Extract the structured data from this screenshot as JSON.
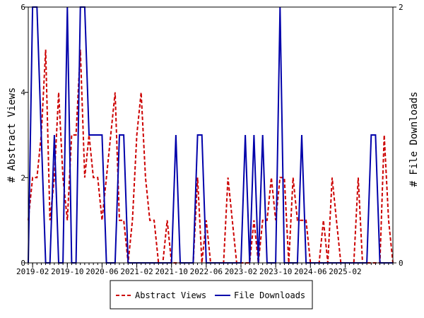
{
  "chart_data": {
    "type": "line",
    "x_start": "2019-01",
    "x_end": "2025-10",
    "x_ticks": [
      "2019-02",
      "2019-10",
      "2020-06",
      "2021-02",
      "2021-10",
      "2022-06",
      "2023-02",
      "2023-10",
      "2024-06",
      "2025-02"
    ],
    "ylabel_left": "# Abstract Views",
    "ylabel_right": "# File Downloads",
    "ylim_left": [
      0,
      6
    ],
    "ylim_right": [
      0,
      2
    ],
    "yticks_left": [
      "0",
      "2",
      "4",
      "6"
    ],
    "yticks_right": [
      "0",
      "2"
    ],
    "legend_position": "bottom-center",
    "series": [
      {
        "name": "Abstract Views",
        "axis": "left",
        "color": "#cc0000",
        "style": "dashed",
        "points": [
          [
            "2019-01",
            1
          ],
          [
            "2019-02",
            2
          ],
          [
            "2019-03",
            2
          ],
          [
            "2019-04",
            3
          ],
          [
            "2019-05",
            5
          ],
          [
            "2019-06",
            1
          ],
          [
            "2019-07",
            2
          ],
          [
            "2019-08",
            4
          ],
          [
            "2019-09",
            2
          ],
          [
            "2019-10",
            1
          ],
          [
            "2019-11",
            3
          ],
          [
            "2019-12",
            3
          ],
          [
            "2020-01",
            5
          ],
          [
            "2020-02",
            2
          ],
          [
            "2020-03",
            3
          ],
          [
            "2020-04",
            2
          ],
          [
            "2020-05",
            2
          ],
          [
            "2020-06",
            1
          ],
          [
            "2020-07",
            2
          ],
          [
            "2020-08",
            3
          ],
          [
            "2020-09",
            4
          ],
          [
            "2020-10",
            1
          ],
          [
            "2020-11",
            1
          ],
          [
            "2020-12",
            0
          ],
          [
            "2021-01",
            1
          ],
          [
            "2021-02",
            3
          ],
          [
            "2021-03",
            4
          ],
          [
            "2021-04",
            2
          ],
          [
            "2021-05",
            1
          ],
          [
            "2021-06",
            1
          ],
          [
            "2021-07",
            0
          ],
          [
            "2021-08",
            0
          ],
          [
            "2021-09",
            1
          ],
          [
            "2021-10",
            0
          ],
          [
            "2021-11",
            0
          ],
          [
            "2021-12",
            0
          ],
          [
            "2022-01",
            0
          ],
          [
            "2022-02",
            0
          ],
          [
            "2022-03",
            0
          ],
          [
            "2022-04",
            2
          ],
          [
            "2022-05",
            0
          ],
          [
            "2022-06",
            1
          ],
          [
            "2022-07",
            0
          ],
          [
            "2022-08",
            0
          ],
          [
            "2022-09",
            0
          ],
          [
            "2022-10",
            0
          ],
          [
            "2022-11",
            2
          ],
          [
            "2022-12",
            1
          ],
          [
            "2023-01",
            0
          ],
          [
            "2023-02",
            0
          ],
          [
            "2023-03",
            0
          ],
          [
            "2023-04",
            0
          ],
          [
            "2023-05",
            1
          ],
          [
            "2023-06",
            0
          ],
          [
            "2023-07",
            1
          ],
          [
            "2023-08",
            1
          ],
          [
            "2023-09",
            2
          ],
          [
            "2023-10",
            1
          ],
          [
            "2023-11",
            2
          ],
          [
            "2023-12",
            2
          ],
          [
            "2024-01",
            0
          ],
          [
            "2024-02",
            2
          ],
          [
            "2024-03",
            1
          ],
          [
            "2024-04",
            1
          ],
          [
            "2024-05",
            1
          ],
          [
            "2024-06",
            0
          ],
          [
            "2024-07",
            0
          ],
          [
            "2024-08",
            0
          ],
          [
            "2024-09",
            1
          ],
          [
            "2024-10",
            0
          ],
          [
            "2024-11",
            2
          ],
          [
            "2024-12",
            1
          ],
          [
            "2025-01",
            0
          ],
          [
            "2025-02",
            0
          ],
          [
            "2025-03",
            0
          ],
          [
            "2025-04",
            0
          ],
          [
            "2025-05",
            2
          ],
          [
            "2025-06",
            0
          ],
          [
            "2025-07",
            0
          ],
          [
            "2025-08",
            0
          ],
          [
            "2025-09",
            0
          ],
          [
            "2025-10",
            0
          ],
          [
            "2025-11",
            3
          ],
          [
            "2025-12",
            1
          ],
          [
            "2026-01",
            0
          ]
        ]
      },
      {
        "name": "File Downloads",
        "axis": "right",
        "color": "#0000aa",
        "style": "solid",
        "points": [
          [
            "2019-01",
            0
          ],
          [
            "2019-02",
            2
          ],
          [
            "2019-03",
            2
          ],
          [
            "2019-04",
            1
          ],
          [
            "2019-05",
            0
          ],
          [
            "2019-06",
            0
          ],
          [
            "2019-07",
            1
          ],
          [
            "2019-08",
            0
          ],
          [
            "2019-09",
            0
          ],
          [
            "2019-10",
            2
          ],
          [
            "2019-11",
            0
          ],
          [
            "2019-12",
            0
          ],
          [
            "2020-01",
            2
          ],
          [
            "2020-02",
            2
          ],
          [
            "2020-03",
            1
          ],
          [
            "2020-04",
            1
          ],
          [
            "2020-05",
            1
          ],
          [
            "2020-06",
            1
          ],
          [
            "2020-07",
            0
          ],
          [
            "2020-08",
            0
          ],
          [
            "2020-09",
            0
          ],
          [
            "2020-10",
            1
          ],
          [
            "2020-11",
            1
          ],
          [
            "2020-12",
            0
          ],
          [
            "2021-01",
            0
          ],
          [
            "2021-02",
            0
          ],
          [
            "2021-03",
            0
          ],
          [
            "2021-04",
            0
          ],
          [
            "2021-05",
            0
          ],
          [
            "2021-06",
            0
          ],
          [
            "2021-07",
            0
          ],
          [
            "2021-08",
            0
          ],
          [
            "2021-09",
            0
          ],
          [
            "2021-10",
            0
          ],
          [
            "2021-11",
            1
          ],
          [
            "2021-12",
            0
          ],
          [
            "2022-01",
            0
          ],
          [
            "2022-02",
            0
          ],
          [
            "2022-03",
            0
          ],
          [
            "2022-04",
            1
          ],
          [
            "2022-05",
            1
          ],
          [
            "2022-06",
            0
          ],
          [
            "2022-07",
            0
          ],
          [
            "2022-08",
            0
          ],
          [
            "2022-09",
            0
          ],
          [
            "2022-10",
            0
          ],
          [
            "2022-11",
            0
          ],
          [
            "2022-12",
            0
          ],
          [
            "2023-01",
            0
          ],
          [
            "2023-02",
            0
          ],
          [
            "2023-03",
            1
          ],
          [
            "2023-04",
            0
          ],
          [
            "2023-05",
            1
          ],
          [
            "2023-06",
            0
          ],
          [
            "2023-07",
            1
          ],
          [
            "2023-08",
            0
          ],
          [
            "2023-09",
            0
          ],
          [
            "2023-10",
            0
          ],
          [
            "2023-11",
            2
          ],
          [
            "2023-12",
            0
          ],
          [
            "2024-01",
            0
          ],
          [
            "2024-02",
            0
          ],
          [
            "2024-03",
            0
          ],
          [
            "2024-04",
            1
          ],
          [
            "2024-05",
            0
          ],
          [
            "2024-06",
            0
          ],
          [
            "2024-07",
            0
          ],
          [
            "2024-08",
            0
          ],
          [
            "2024-09",
            0
          ],
          [
            "2024-10",
            0
          ],
          [
            "2024-11",
            0
          ],
          [
            "2024-12",
            0
          ],
          [
            "2025-01",
            0
          ],
          [
            "2025-02",
            0
          ],
          [
            "2025-03",
            0
          ],
          [
            "2025-04",
            0
          ],
          [
            "2025-05",
            0
          ],
          [
            "2025-06",
            0
          ],
          [
            "2025-07",
            0
          ],
          [
            "2025-08",
            1
          ],
          [
            "2025-09",
            1
          ],
          [
            "2025-10",
            0
          ],
          [
            "2025-11",
            0
          ],
          [
            "2025-12",
            0
          ],
          [
            "2026-01",
            0
          ]
        ]
      }
    ]
  }
}
